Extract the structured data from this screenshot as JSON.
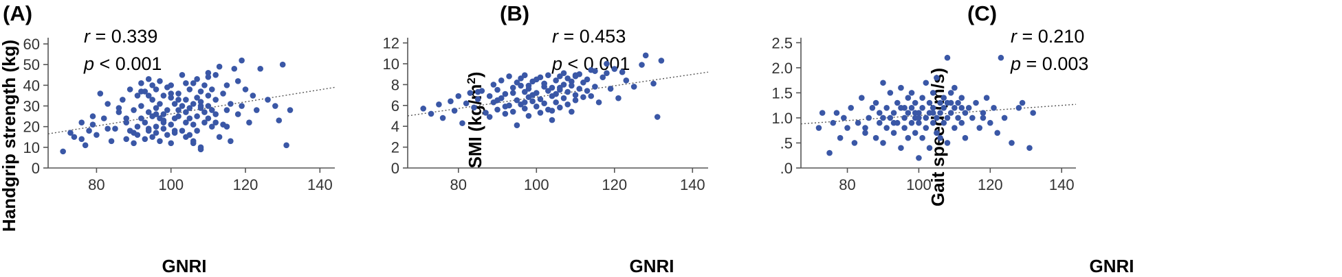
{
  "chart_data": [
    {
      "type": "scatter",
      "panel_label": "(A)",
      "r_label": "r",
      "r_value": " = 0.339",
      "p_label": "p",
      "p_value": " < 0.001",
      "xlabel": "GNRI",
      "ylabel": "Handgrip strength (kg)",
      "xlim": [
        67,
        144
      ],
      "ylim": [
        0,
        63
      ],
      "xticks": [
        80,
        100,
        120,
        140
      ],
      "xtick_labels": [
        "80",
        "100",
        "120",
        "140"
      ],
      "yticks": [
        0,
        10,
        20,
        30,
        40,
        50,
        60
      ],
      "ytick_labels": [
        "0",
        "10",
        "20",
        "30",
        "40",
        "50",
        "60"
      ],
      "trendline": {
        "x": [
          67,
          144
        ],
        "y": [
          16.5,
          39.0
        ]
      },
      "point_color": "#3a57a6",
      "series": [
        {
          "x": [
            71,
            73,
            74,
            76,
            77,
            78,
            79,
            80,
            81,
            82,
            83,
            84,
            85,
            86,
            87,
            88,
            88,
            89,
            89,
            90,
            90,
            91,
            91,
            91,
            92,
            92,
            92,
            93,
            93,
            93,
            94,
            94,
            94,
            95,
            95,
            95,
            95,
            96,
            96,
            96,
            96,
            97,
            97,
            97,
            97,
            98,
            98,
            98,
            98,
            99,
            99,
            99,
            100,
            100,
            100,
            100,
            101,
            101,
            101,
            102,
            102,
            102,
            103,
            103,
            103,
            104,
            104,
            104,
            104,
            105,
            105,
            105,
            105,
            106,
            106,
            106,
            106,
            107,
            107,
            107,
            107,
            108,
            108,
            108,
            108,
            109,
            109,
            109,
            110,
            110,
            110,
            110,
            111,
            111,
            111,
            112,
            112,
            112,
            113,
            113,
            114,
            114,
            115,
            115,
            116,
            116,
            117,
            118,
            118,
            119,
            120,
            121,
            122,
            123,
            124,
            126,
            128,
            129,
            130,
            131,
            132,
            76,
            79,
            83,
            86,
            90,
            94,
            98,
            101,
            104,
            108,
            112,
            115,
            119,
            92,
            96,
            100,
            106,
            110,
            88,
            94,
            102,
            108
          ],
          "y": [
            8,
            17,
            15,
            22,
            11,
            18,
            25,
            16,
            36,
            24,
            31,
            13,
            19,
            27,
            33,
            14,
            22,
            18,
            38,
            12,
            28,
            20,
            35,
            16,
            41,
            24,
            30,
            14,
            22,
            37,
            18,
            27,
            43,
            15,
            25,
            33,
            40,
            20,
            29,
            38,
            17,
            24,
            31,
            42,
            13,
            22,
            35,
            19,
            26,
            39,
            16,
            28,
            34,
            21,
            12,
            36,
            31,
            17,
            24,
            25,
            36,
            28,
            18,
            30,
            45,
            22,
            33,
            27,
            15,
            24,
            38,
            29,
            16,
            31,
            41,
            21,
            12,
            34,
            25,
            43,
            18,
            29,
            37,
            9,
            32,
            27,
            22,
            40,
            24,
            35,
            46,
            30,
            20,
            38,
            28,
            26,
            33,
            22,
            49,
            15,
            36,
            21,
            40,
            28,
            31,
            13,
            48,
            42,
            26,
            52,
            38,
            22,
            35,
            28,
            48,
            33,
            30,
            23,
            50,
            11,
            28,
            14,
            21,
            19,
            29,
            17,
            35,
            23,
            18,
            41,
            30,
            45,
            20,
            30,
            37,
            26,
            40,
            13,
            44,
            24,
            19,
            33,
            10
          ]
        }
      ]
    },
    {
      "type": "scatter",
      "panel_label": "(B)",
      "r_label": "r",
      "r_value": " = 0.453",
      "p_label": "p",
      "p_value": " < 0.001",
      "xlabel": "GNRI",
      "ylabel_main": "SMI (kg/m",
      "ylabel_sup": "2",
      "ylabel_end": ")",
      "xlim": [
        67,
        144
      ],
      "ylim": [
        0,
        12.5
      ],
      "xticks": [
        80,
        100,
        120,
        140
      ],
      "xtick_labels": [
        "80",
        "100",
        "120",
        "140"
      ],
      "yticks": [
        0,
        2,
        4,
        6,
        8,
        10,
        12
      ],
      "ytick_labels": [
        "0",
        "2",
        "4",
        "6",
        "8",
        "10",
        "12"
      ],
      "trendline": {
        "x": [
          67,
          144
        ],
        "y": [
          5.0,
          9.2
        ]
      },
      "point_color": "#3a57a6",
      "series": [
        {
          "x": [
            71,
            73,
            75,
            76,
            78,
            79,
            80,
            81,
            82,
            83,
            84,
            85,
            86,
            87,
            88,
            88,
            89,
            89,
            90,
            90,
            91,
            91,
            92,
            92,
            93,
            93,
            94,
            94,
            95,
            95,
            95,
            96,
            96,
            96,
            97,
            97,
            97,
            98,
            98,
            98,
            99,
            99,
            99,
            100,
            100,
            100,
            101,
            101,
            101,
            102,
            102,
            102,
            103,
            103,
            103,
            104,
            104,
            104,
            105,
            105,
            105,
            106,
            106,
            106,
            107,
            107,
            107,
            108,
            108,
            108,
            109,
            109,
            109,
            110,
            110,
            110,
            111,
            111,
            112,
            112,
            113,
            113,
            114,
            115,
            115,
            116,
            117,
            118,
            119,
            120,
            121,
            122,
            123,
            125,
            127,
            128,
            130,
            131,
            132,
            85,
            90,
            94,
            98,
            102,
            106,
            110,
            114,
            118,
            92,
            97,
            104
          ],
          "y": [
            5.7,
            5.2,
            6.1,
            4.8,
            6.4,
            5.5,
            6.9,
            4.3,
            6.2,
            7.2,
            5.8,
            6.6,
            7.4,
            5.3,
            6.9,
            4.9,
            8.0,
            6.3,
            7.5,
            5.6,
            8.4,
            6.7,
            7.1,
            5.2,
            8.8,
            6.0,
            7.7,
            5.4,
            8.2,
            6.5,
            4.1,
            7.9,
            6.1,
            8.6,
            7.3,
            5.7,
            8.9,
            6.8,
            5.0,
            7.6,
            8.3,
            6.4,
            7.0,
            8.5,
            5.9,
            7.2,
            6.6,
            8.7,
            5.3,
            7.8,
            6.2,
            8.1,
            7.4,
            5.6,
            8.9,
            6.9,
            7.7,
            4.6,
            8.4,
            6.3,
            7.1,
            8.8,
            5.8,
            7.5,
            9.1,
            6.7,
            8.0,
            7.3,
            8.6,
            6.1,
            7.9,
            5.4,
            8.3,
            7.0,
            8.8,
            6.5,
            7.6,
            9.0,
            8.2,
            6.8,
            7.4,
            8.5,
            6.9,
            9.3,
            7.8,
            6.3,
            8.7,
            10.0,
            7.6,
            9.5,
            6.7,
            9.2,
            8.4,
            7.8,
            9.9,
            10.8,
            8.1,
            4.9,
            10.3,
            7.3,
            6.5,
            7.2,
            7.9,
            8.1,
            7.7,
            8.9,
            9.4,
            9.1,
            5.9,
            6.3,
            5.5
          ]
        }
      ]
    },
    {
      "type": "scatter",
      "panel_label": "(C)",
      "r_label": "r",
      "r_value": " = 0.210",
      "p_label": "p",
      "p_value": " = 0.003",
      "xlabel": "GNRI",
      "ylabel": "Gait speed (m/s)",
      "xlim": [
        67,
        144
      ],
      "ylim": [
        0,
        2.6
      ],
      "xticks": [
        80,
        100,
        120,
        140
      ],
      "xtick_labels": [
        "80",
        "100",
        "120",
        "140"
      ],
      "yticks": [
        0,
        0.5,
        1.0,
        1.5,
        2.0,
        2.5
      ],
      "ytick_labels": [
        ".0",
        ".5",
        "1.0",
        "1.5",
        "2.0",
        "2.5"
      ],
      "trendline": {
        "x": [
          67,
          144
        ],
        "y": [
          0.88,
          1.27
        ]
      },
      "point_color": "#3a57a6",
      "series": [
        {
          "x": [
            72,
            73,
            75,
            76,
            77,
            78,
            79,
            80,
            81,
            82,
            83,
            84,
            85,
            86,
            87,
            88,
            88,
            89,
            89,
            90,
            90,
            91,
            91,
            92,
            92,
            93,
            93,
            94,
            94,
            95,
            95,
            96,
            96,
            96,
            97,
            97,
            97,
            98,
            98,
            98,
            99,
            99,
            99,
            100,
            100,
            100,
            101,
            101,
            101,
            102,
            102,
            102,
            103,
            103,
            103,
            104,
            104,
            104,
            105,
            105,
            105,
            106,
            106,
            106,
            107,
            107,
            107,
            108,
            108,
            108,
            109,
            109,
            109,
            110,
            110,
            110,
            111,
            111,
            112,
            112,
            113,
            113,
            114,
            115,
            116,
            117,
            118,
            119,
            120,
            121,
            122,
            123,
            124,
            126,
            128,
            129,
            131,
            132,
            85,
            90,
            95,
            100,
            104,
            108,
            112,
            118,
            93,
            99
          ],
          "y": [
            0.8,
            1.1,
            0.3,
            0.9,
            1.1,
            0.6,
            1.0,
            0.8,
            1.2,
            0.5,
            0.9,
            1.4,
            0.7,
            1.0,
            1.2,
            0.6,
            1.3,
            0.9,
            1.1,
            0.5,
            1.7,
            0.8,
            1.2,
            1.0,
            1.5,
            0.7,
            1.1,
            1.3,
            0.9,
            1.6,
            0.4,
            1.0,
            1.2,
            0.8,
            1.4,
            0.6,
            1.1,
            0.9,
            1.5,
            1.2,
            0.7,
            1.0,
            1.3,
            0.2,
            1.1,
            0.9,
            1.4,
            0.6,
            1.2,
            1.0,
            1.7,
            0.8,
            1.1,
            0.4,
            1.3,
            0.9,
            1.2,
            1.5,
            0.7,
            1.0,
            1.8,
            1.1,
            1.3,
            0.6,
            0.9,
            1.4,
            1.2,
            2.2,
            1.0,
            0.5,
            1.3,
            1.1,
            1.5,
            0.8,
            1.2,
            1.6,
            1.0,
            1.3,
            0.9,
            1.4,
            1.1,
            0.6,
            1.2,
            1.0,
            1.3,
            0.8,
            1.1,
            1.4,
            0.9,
            1.2,
            0.7,
            2.2,
            1.0,
            0.5,
            1.2,
            1.3,
            0.4,
            1.1,
            0.8,
            1.0,
            1.2,
            1.0,
            1.1,
            1.3,
            1.2,
            1.0,
            0.9,
            1.1
          ]
        }
      ]
    }
  ]
}
